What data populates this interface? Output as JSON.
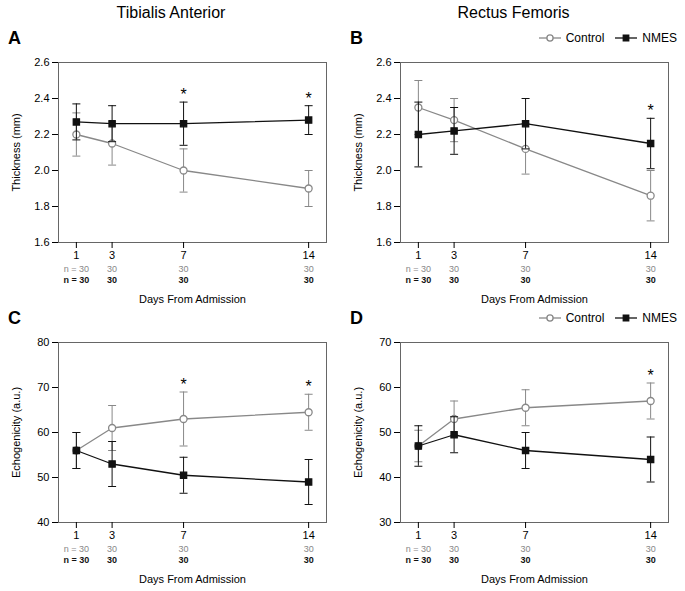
{
  "chart_data": [
    {
      "type": "line",
      "title": "A",
      "subtitle": "Tibialis Anterior",
      "xlabel": "Days From Admission",
      "ylabel": "Thickness (mm)",
      "x": [
        1,
        3,
        7,
        14
      ],
      "xlim": [
        0,
        15
      ],
      "xticks": [
        1,
        3,
        7,
        14
      ],
      "ylim": [
        1.6,
        2.6
      ],
      "yticks": [
        1.6,
        1.8,
        {
          "value": 2.0,
          "label": "2.0"
        },
        2.2,
        2.4,
        2.6
      ],
      "grid": false,
      "legend": false,
      "series": [
        {
          "name": "Control",
          "color": "#888888",
          "marker": "open circle",
          "line_style": "solid",
          "values": [
            2.2,
            2.15,
            2.0,
            1.9
          ],
          "errors": [
            0.12,
            0.12,
            0.12,
            0.1
          ]
        },
        {
          "name": "NMES",
          "color": "#111111",
          "marker": "square",
          "line_style": "solid",
          "values": [
            2.27,
            2.26,
            2.26,
            2.28
          ],
          "errors": [
            0.1,
            0.1,
            0.12,
            0.08
          ]
        }
      ],
      "annotations": [
        {
          "x": 7,
          "text": "*"
        },
        {
          "x": 14,
          "text": "*"
        },
        {
          "x": 1,
          "text": "n = 30",
          "series": "Control"
        },
        {
          "x": 3,
          "text": "30",
          "series": "Control"
        },
        {
          "x": 7,
          "text": "30",
          "series": "Control"
        },
        {
          "x": 14,
          "text": "30",
          "series": "Control"
        },
        {
          "x": 1,
          "text": "n = 30",
          "series": "NMES"
        },
        {
          "x": 3,
          "text": "30",
          "series": "NMES"
        },
        {
          "x": 7,
          "text": "30",
          "series": "NMES"
        },
        {
          "x": 14,
          "text": "30",
          "series": "NMES"
        }
      ]
    },
    {
      "type": "line",
      "title": "B",
      "subtitle": "Rectus Femoris",
      "xlabel": "Days From Admission",
      "ylabel": "Thickness (mm)",
      "x": [
        1,
        3,
        7,
        14
      ],
      "xlim": [
        0,
        15
      ],
      "xticks": [
        1,
        3,
        7,
        14
      ],
      "ylim": [
        1.6,
        2.6
      ],
      "yticks": [
        1.6,
        1.8,
        {
          "value": 2.0,
          "label": "2.0"
        },
        2.2,
        2.4,
        2.6
      ],
      "grid": false,
      "legend": "upper right",
      "series": [
        {
          "name": "Control",
          "color": "#888888",
          "marker": "open circle",
          "line_style": "solid",
          "values": [
            2.35,
            2.28,
            2.12,
            1.86
          ],
          "errors": [
            0.15,
            0.12,
            0.14,
            0.14
          ]
        },
        {
          "name": "NMES",
          "color": "#111111",
          "marker": "square",
          "line_style": "solid",
          "values": [
            2.2,
            2.22,
            2.26,
            2.15
          ],
          "errors": [
            0.18,
            0.13,
            0.14,
            0.14
          ]
        }
      ],
      "annotations": [
        {
          "x": 14,
          "text": "*"
        },
        {
          "x": 1,
          "text": "n = 30",
          "series": "Control"
        },
        {
          "x": 3,
          "text": "30",
          "series": "Control"
        },
        {
          "x": 7,
          "text": "30",
          "series": "Control"
        },
        {
          "x": 14,
          "text": "30",
          "series": "Control"
        },
        {
          "x": 1,
          "text": "n = 30",
          "series": "NMES"
        },
        {
          "x": 3,
          "text": "30",
          "series": "NMES"
        },
        {
          "x": 7,
          "text": "30",
          "series": "NMES"
        },
        {
          "x": 14,
          "text": "30",
          "series": "NMES"
        }
      ]
    },
    {
      "type": "line",
      "title": "C",
      "xlabel": "Days From Admission",
      "ylabel": "Echogenicity (a.u.)",
      "x": [
        1,
        3,
        7,
        14
      ],
      "xlim": [
        0,
        15
      ],
      "xticks": [
        1,
        3,
        7,
        14
      ],
      "ylim": [
        40,
        80
      ],
      "yticks": [
        40,
        50,
        60,
        70,
        80
      ],
      "grid": false,
      "legend": false,
      "series": [
        {
          "name": "Control",
          "color": "#888888",
          "marker": "open circle",
          "line_style": "solid",
          "values": [
            56,
            61,
            63,
            64.5
          ],
          "errors": [
            4,
            5,
            6,
            4
          ]
        },
        {
          "name": "NMES",
          "color": "#111111",
          "marker": "square",
          "line_style": "solid",
          "values": [
            56,
            53,
            50.5,
            49
          ],
          "errors": [
            4,
            5,
            4,
            5
          ]
        }
      ],
      "annotations": [
        {
          "x": 7,
          "text": "*"
        },
        {
          "x": 14,
          "text": "*"
        },
        {
          "x": 1,
          "text": "n = 30",
          "series": "Control"
        },
        {
          "x": 3,
          "text": "30",
          "series": "Control"
        },
        {
          "x": 7,
          "text": "30",
          "series": "Control"
        },
        {
          "x": 14,
          "text": "30",
          "series": "Control"
        },
        {
          "x": 1,
          "text": "n = 30",
          "series": "NMES"
        },
        {
          "x": 3,
          "text": "30",
          "series": "NMES"
        },
        {
          "x": 7,
          "text": "30",
          "series": "NMES"
        },
        {
          "x": 14,
          "text": "30",
          "series": "NMES"
        }
      ]
    },
    {
      "type": "line",
      "title": "D",
      "xlabel": "Days From Admission",
      "ylabel": "Echogenicity (a.u.)",
      "x": [
        1,
        3,
        7,
        14
      ],
      "xlim": [
        0,
        15
      ],
      "xticks": [
        1,
        3,
        7,
        14
      ],
      "ylim": [
        30,
        70
      ],
      "yticks": [
        30,
        40,
        50,
        60,
        70
      ],
      "grid": false,
      "legend": "upper right",
      "series": [
        {
          "name": "Control",
          "color": "#888888",
          "marker": "open circle",
          "line_style": "solid",
          "values": [
            47,
            53,
            55.5,
            57
          ],
          "errors": [
            3.5,
            4,
            4,
            4
          ]
        },
        {
          "name": "NMES",
          "color": "#111111",
          "marker": "square",
          "line_style": "solid",
          "values": [
            47,
            49.5,
            46,
            44
          ],
          "errors": [
            4.5,
            4,
            4,
            5
          ]
        }
      ],
      "annotations": [
        {
          "x": 14,
          "text": "*"
        },
        {
          "x": 1,
          "text": "n = 30",
          "series": "Control"
        },
        {
          "x": 3,
          "text": "30",
          "series": "Control"
        },
        {
          "x": 7,
          "text": "30",
          "series": "Control"
        },
        {
          "x": 14,
          "text": "30",
          "series": "Control"
        },
        {
          "x": 1,
          "text": "n = 30",
          "series": "NMES"
        },
        {
          "x": 3,
          "text": "30",
          "series": "NMES"
        },
        {
          "x": 7,
          "text": "30",
          "series": "NMES"
        },
        {
          "x": 14,
          "text": "30",
          "series": "NMES"
        }
      ]
    }
  ]
}
